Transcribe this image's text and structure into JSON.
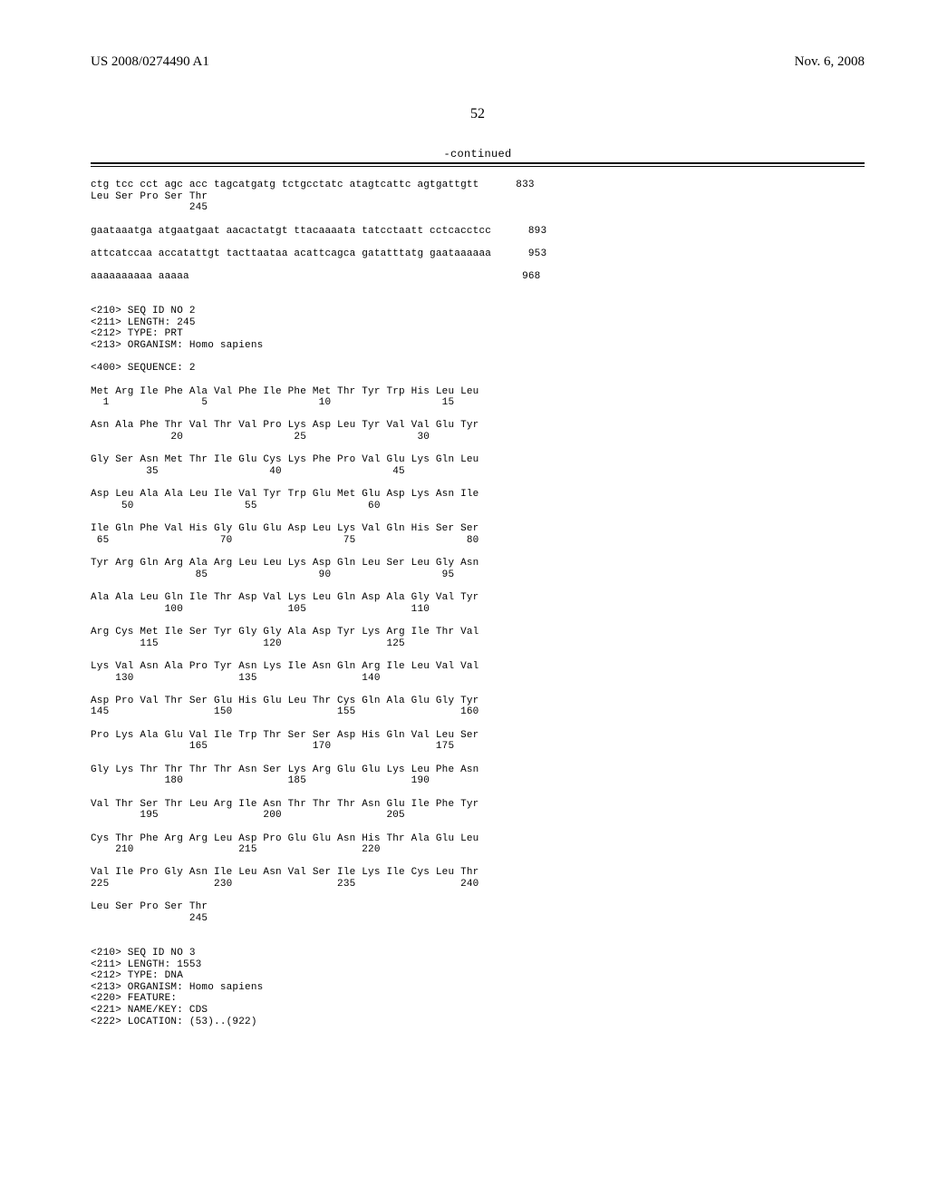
{
  "header": {
    "pub_number": "US 2008/0274490 A1",
    "pub_date": "Nov. 6, 2008"
  },
  "page_number": "52",
  "continued_label": "-continued",
  "seq_text": "ctg tcc cct agc acc tagcatgatg tctgcctatc atagtcattc agtgattgtt      833\nLeu Ser Pro Ser Thr\n                245\n\ngaataaatga atgaatgaat aacactatgt ttacaaaata tatcctaatt cctcacctcc      893\n\nattcatccaa accatattgt tacttaataa acattcagca gatatttatg gaataaaaaa      953\n\naaaaaaaaaa aaaaa                                                      968\n\n\n<210> SEQ ID NO 2\n<211> LENGTH: 245\n<212> TYPE: PRT\n<213> ORGANISM: Homo sapiens\n\n<400> SEQUENCE: 2\n\nMet Arg Ile Phe Ala Val Phe Ile Phe Met Thr Tyr Trp His Leu Leu\n  1               5                  10                  15\n\nAsn Ala Phe Thr Val Thr Val Pro Lys Asp Leu Tyr Val Val Glu Tyr\n             20                  25                  30\n\nGly Ser Asn Met Thr Ile Glu Cys Lys Phe Pro Val Glu Lys Gln Leu\n         35                  40                  45\n\nAsp Leu Ala Ala Leu Ile Val Tyr Trp Glu Met Glu Asp Lys Asn Ile\n     50                  55                  60\n\nIle Gln Phe Val His Gly Glu Glu Asp Leu Lys Val Gln His Ser Ser\n 65                  70                  75                  80\n\nTyr Arg Gln Arg Ala Arg Leu Leu Lys Asp Gln Leu Ser Leu Gly Asn\n                 85                  90                  95\n\nAla Ala Leu Gln Ile Thr Asp Val Lys Leu Gln Asp Ala Gly Val Tyr\n            100                 105                 110\n\nArg Cys Met Ile Ser Tyr Gly Gly Ala Asp Tyr Lys Arg Ile Thr Val\n        115                 120                 125\n\nLys Val Asn Ala Pro Tyr Asn Lys Ile Asn Gln Arg Ile Leu Val Val\n    130                 135                 140\n\nAsp Pro Val Thr Ser Glu His Glu Leu Thr Cys Gln Ala Glu Gly Tyr\n145                 150                 155                 160\n\nPro Lys Ala Glu Val Ile Trp Thr Ser Ser Asp His Gln Val Leu Ser\n                165                 170                 175\n\nGly Lys Thr Thr Thr Thr Asn Ser Lys Arg Glu Glu Lys Leu Phe Asn\n            180                 185                 190\n\nVal Thr Ser Thr Leu Arg Ile Asn Thr Thr Thr Asn Glu Ile Phe Tyr\n        195                 200                 205\n\nCys Thr Phe Arg Arg Leu Asp Pro Glu Glu Asn His Thr Ala Glu Leu\n    210                 215                 220\n\nVal Ile Pro Gly Asn Ile Leu Asn Val Ser Ile Lys Ile Cys Leu Thr\n225                 230                 235                 240\n\nLeu Ser Pro Ser Thr\n                245\n\n\n<210> SEQ ID NO 3\n<211> LENGTH: 1553\n<212> TYPE: DNA\n<213> ORGANISM: Homo sapiens\n<220> FEATURE:\n<221> NAME/KEY: CDS\n<222> LOCATION: (53)..(922)"
}
